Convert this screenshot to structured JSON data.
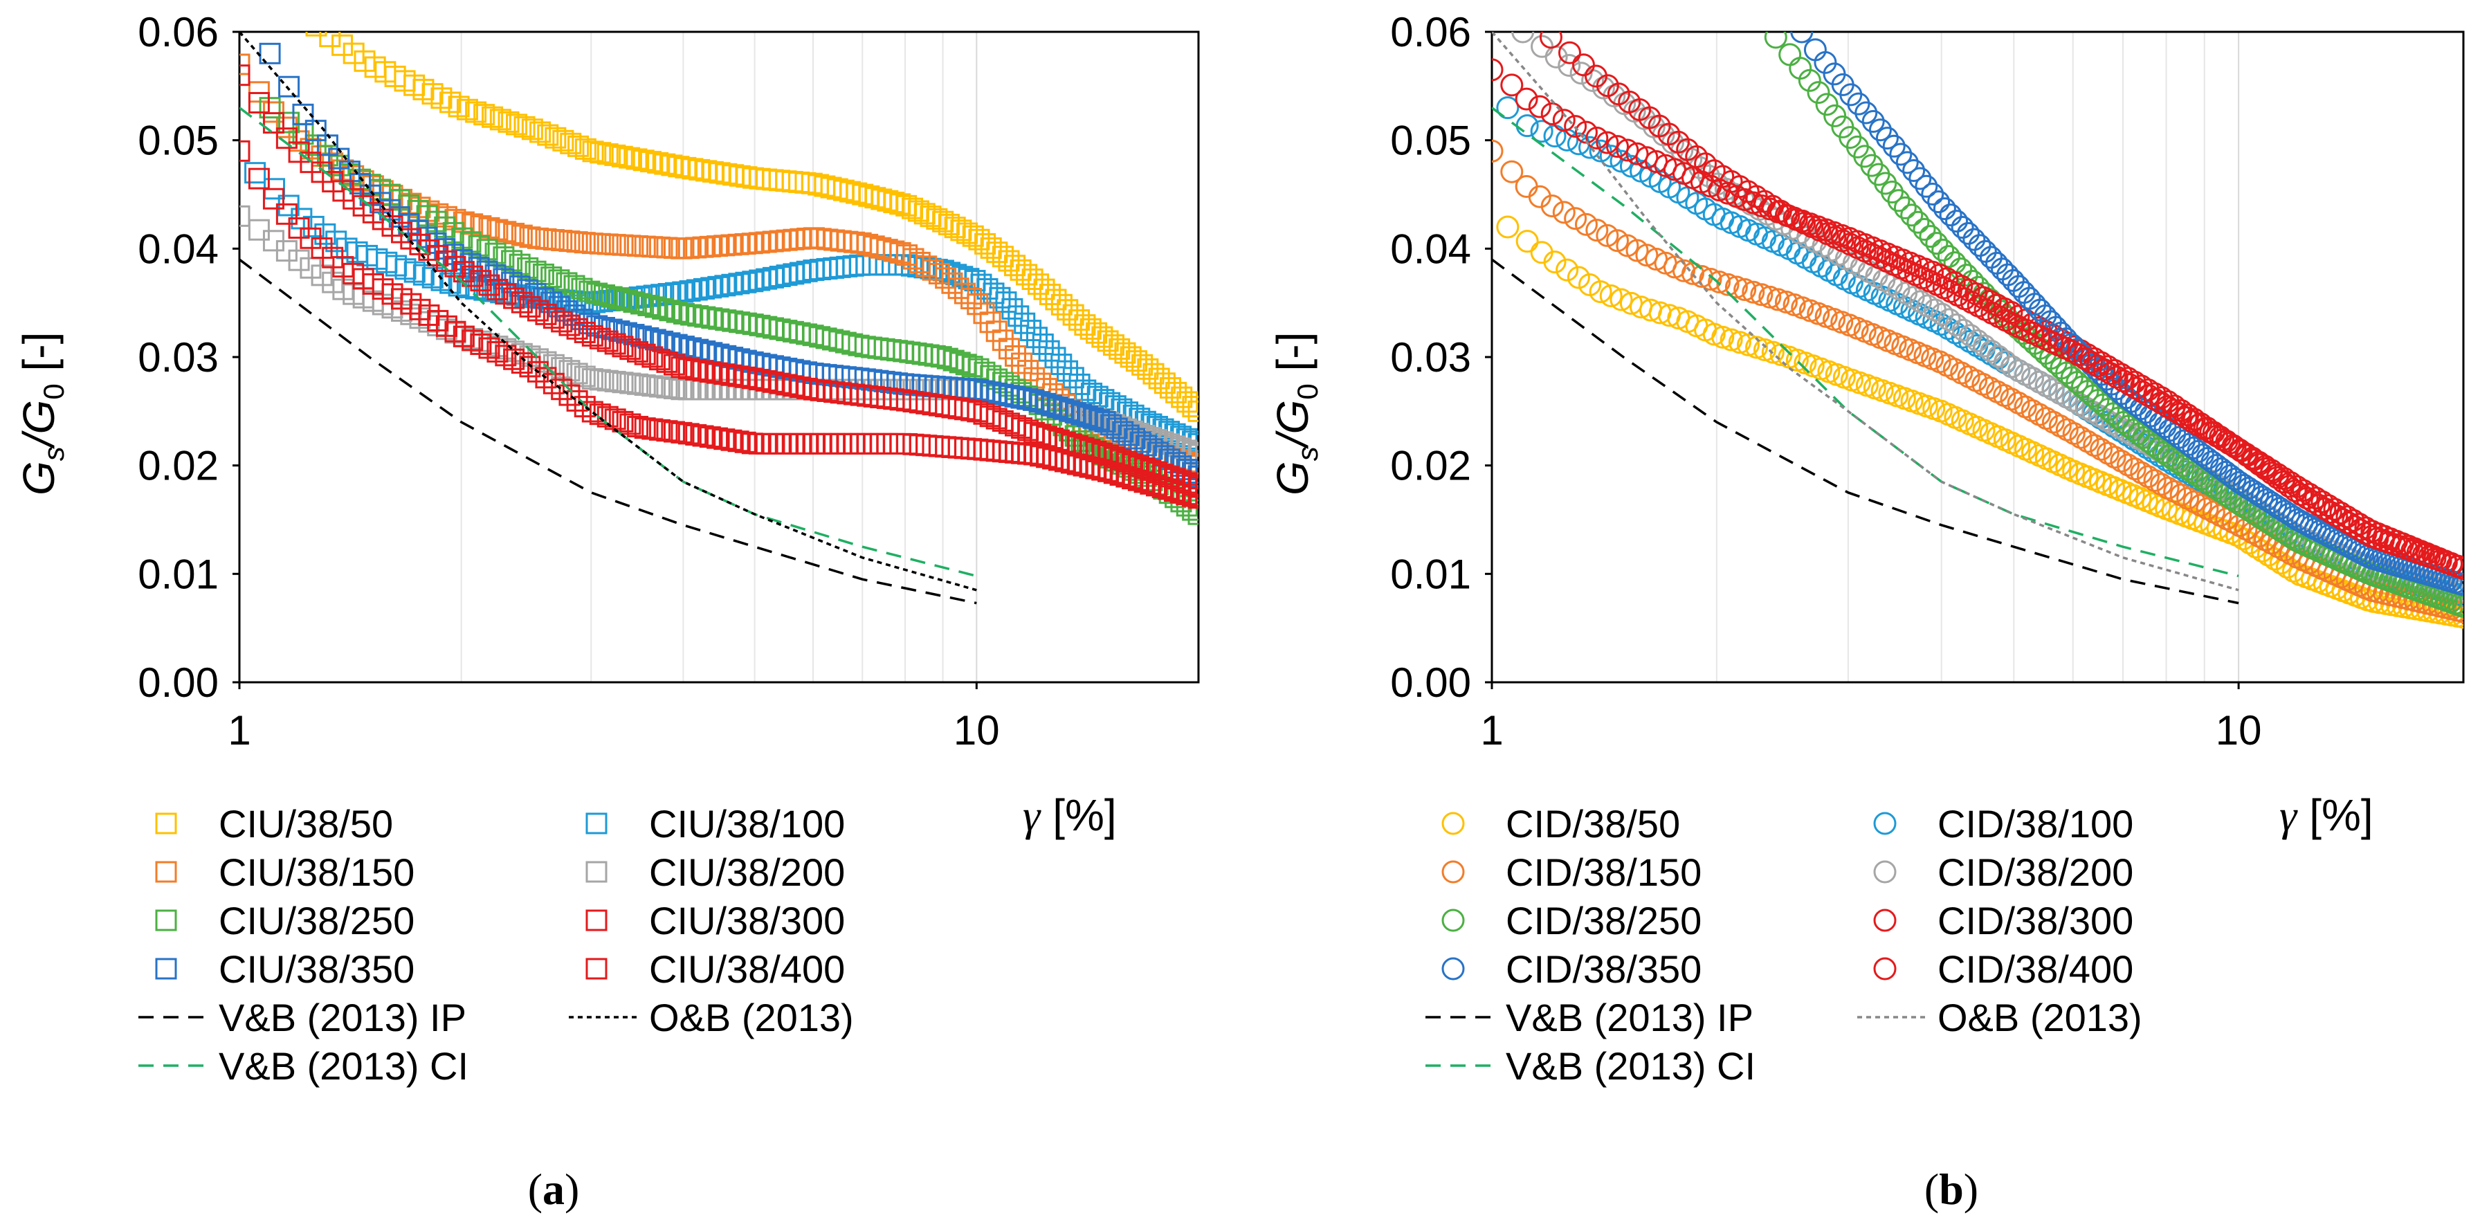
{
  "chart_data": [
    {
      "type": "scatter",
      "panel_label": "a",
      "xlabel_symbol": "γ",
      "xlabel_unit": "[%]",
      "ylabel_main": "G",
      "ylabel_sub1": "s",
      "ylabel_slash": "/G",
      "ylabel_sub2": "0",
      "ylabel_unit": " [-]",
      "xscale": "log",
      "xlim": [
        1,
        20
      ],
      "ylim": [
        0,
        0.06
      ],
      "xticks": [
        {
          "value": 1,
          "label": "1"
        },
        {
          "value": 10,
          "label": "10"
        }
      ],
      "yticks": [
        {
          "value": 0,
          "label": "0.00"
        },
        {
          "value": 0.01,
          "label": "0.01"
        },
        {
          "value": 0.02,
          "label": "0.02"
        },
        {
          "value": 0.03,
          "label": "0.03"
        },
        {
          "value": 0.04,
          "label": "0.04"
        },
        {
          "value": 0.05,
          "label": "0.05"
        },
        {
          "value": 0.06,
          "label": "0.06"
        }
      ],
      "grid": "vertical-minor",
      "marker": "square",
      "series": [
        {
          "name": "CIU/38/50",
          "color": "#FFC000",
          "x": [
            1.2,
            1.3,
            1.5,
            1.8,
            2.0,
            2.5,
            3.0,
            4.0,
            5.0,
            6.0,
            7.0,
            8.0,
            9.0,
            10.0,
            11.0,
            12.0,
            14.0,
            17.0,
            20.0
          ],
          "y": [
            0.062,
            0.06,
            0.057,
            0.0545,
            0.053,
            0.051,
            0.049,
            0.0475,
            0.0465,
            0.046,
            0.045,
            0.044,
            0.0425,
            0.041,
            0.039,
            0.037,
            0.033,
            0.029,
            0.025
          ]
        },
        {
          "name": "CIU/38/100",
          "color": "#1E9AD6",
          "x": [
            1.05,
            1.1,
            1.2,
            1.4,
            1.7,
            2.0,
            2.5,
            3.0,
            4.0,
            5.0,
            6.0,
            7.0,
            8.0,
            9.0,
            10.0,
            11.0,
            12.0,
            14.0,
            17.0,
            20.0
          ],
          "y": [
            0.047,
            0.046,
            0.043,
            0.04,
            0.038,
            0.0365,
            0.0355,
            0.035,
            0.036,
            0.037,
            0.038,
            0.0385,
            0.0385,
            0.038,
            0.037,
            0.035,
            0.032,
            0.027,
            0.024,
            0.022
          ]
        },
        {
          "name": "CIU/38/150",
          "color": "#F27D2A",
          "x": [
            1.0,
            1.05,
            1.1,
            1.2,
            1.4,
            1.6,
            1.8,
            2.0,
            2.5,
            3.0,
            4.0,
            5.0,
            6.0,
            7.0,
            8.0,
            9.0,
            10.0,
            11.0,
            12.0,
            13.0,
            14.0,
            16.0,
            20.0
          ],
          "y": [
            0.057,
            0.055,
            0.053,
            0.05,
            0.047,
            0.045,
            0.0435,
            0.0425,
            0.041,
            0.0405,
            0.04,
            0.0405,
            0.041,
            0.0405,
            0.0395,
            0.0375,
            0.035,
            0.031,
            0.028,
            0.026,
            0.024,
            0.022,
            0.02
          ]
        },
        {
          "name": "CIU/38/200",
          "color": "#A6A6A6",
          "x": [
            1.0,
            1.05,
            1.1,
            1.2,
            1.4,
            1.7,
            2.0,
            2.5,
            3.0,
            4.0,
            5.0,
            6.0,
            8.0,
            10.0,
            12.0,
            15.0,
            20.0
          ],
          "y": [
            0.043,
            0.042,
            0.041,
            0.039,
            0.036,
            0.034,
            0.032,
            0.03,
            0.028,
            0.027,
            0.027,
            0.027,
            0.027,
            0.027,
            0.026,
            0.024,
            0.021
          ]
        },
        {
          "name": "CIU/38/250",
          "color": "#4CB043",
          "x": [
            1.1,
            1.2,
            1.4,
            1.6,
            1.8,
            2.0,
            2.5,
            3.0,
            4.0,
            5.0,
            6.0,
            7.0,
            8.0,
            9.0,
            10.0,
            12.0,
            14.0,
            17.0,
            20.0
          ],
          "y": [
            0.053,
            0.051,
            0.047,
            0.045,
            0.043,
            0.041,
            0.038,
            0.036,
            0.034,
            0.033,
            0.032,
            0.031,
            0.0305,
            0.03,
            0.029,
            0.026,
            0.022,
            0.019,
            0.0155
          ]
        },
        {
          "name": "CIU/38/300",
          "color": "#E41A1C",
          "x": [
            1.0,
            1.05,
            1.1,
            1.2,
            1.4,
            1.7,
            2.0,
            2.5,
            3.0,
            3.5,
            4.0,
            5.0,
            6.0,
            8.0,
            10.0,
            12.0,
            15.0,
            20.0
          ],
          "y": [
            0.049,
            0.047,
            0.045,
            0.042,
            0.038,
            0.035,
            0.032,
            0.029,
            0.025,
            0.0235,
            0.023,
            0.022,
            0.022,
            0.022,
            0.0215,
            0.021,
            0.0195,
            0.017
          ]
        },
        {
          "name": "CIU/38/350",
          "color": "#2873C7",
          "x": [
            1.1,
            1.15,
            1.2,
            1.3,
            1.5,
            1.8,
            2.0,
            2.5,
            3.0,
            4.0,
            5.0,
            6.0,
            7.0,
            8.0,
            10.0,
            12.0,
            15.0,
            20.0
          ],
          "y": [
            0.058,
            0.056,
            0.053,
            0.05,
            0.045,
            0.041,
            0.039,
            0.036,
            0.033,
            0.031,
            0.0295,
            0.0285,
            0.028,
            0.0275,
            0.027,
            0.026,
            0.024,
            0.019
          ]
        },
        {
          "name": "CIU/38/400",
          "color": "#E41A1C",
          "x": [
            1.0,
            1.05,
            1.1,
            1.2,
            1.4,
            1.7,
            2.0,
            2.5,
            3.0,
            4.0,
            5.0,
            6.0,
            8.0,
            10.0,
            12.0,
            15.0,
            20.0
          ],
          "y": [
            0.056,
            0.054,
            0.052,
            0.049,
            0.045,
            0.041,
            0.038,
            0.0345,
            0.032,
            0.029,
            0.028,
            0.027,
            0.026,
            0.025,
            0.023,
            0.021,
            0.018
          ]
        }
      ],
      "lines": [
        {
          "name": "V&B (2013) IP",
          "color": "#000000",
          "dash": "long",
          "x": [
            1,
            1.5,
            2,
            3,
            4,
            5,
            7,
            10
          ],
          "y": [
            0.039,
            0.03,
            0.024,
            0.0175,
            0.0145,
            0.0125,
            0.0095,
            0.0073
          ]
        },
        {
          "name": "V&B (2013) CI",
          "color": "#1FAF63",
          "dash": "long",
          "x": [
            1,
            1.5,
            2,
            3,
            4,
            5,
            7,
            10
          ],
          "y": [
            0.053,
            0.044,
            0.037,
            0.025,
            0.0185,
            0.0155,
            0.0125,
            0.0098
          ]
        },
        {
          "name": "O&B (2013)",
          "color": "#000000",
          "dash": "short",
          "x": [
            1,
            1.3,
            1.6,
            2,
            2.5,
            3,
            4,
            5,
            7,
            10
          ],
          "y": [
            0.06,
            0.051,
            0.043,
            0.035,
            0.029,
            0.025,
            0.0185,
            0.0155,
            0.0115,
            0.0085
          ]
        }
      ],
      "legend": {
        "placement": "below",
        "columns": [
          [
            "CIU/38/50",
            "CIU/38/150",
            "CIU/38/250",
            "CIU/38/350",
            "V&B (2013) IP",
            "V&B (2013) CI"
          ],
          [
            "CIU/38/100",
            "CIU/38/200",
            "CIU/38/300",
            "CIU/38/400",
            "O&B (2013)"
          ]
        ]
      }
    },
    {
      "type": "scatter",
      "panel_label": "b",
      "xlabel_symbol": "γ",
      "xlabel_unit": "[%]",
      "ylabel_main": "G",
      "ylabel_sub1": "s",
      "ylabel_slash": "/G",
      "ylabel_sub2": "0",
      "ylabel_unit": " [-]",
      "xscale": "log",
      "xlim": [
        1,
        20
      ],
      "ylim": [
        0,
        0.06
      ],
      "xticks": [
        {
          "value": 1,
          "label": "1"
        },
        {
          "value": 10,
          "label": "10"
        }
      ],
      "yticks": [
        {
          "value": 0,
          "label": "0.00"
        },
        {
          "value": 0.01,
          "label": "0.01"
        },
        {
          "value": 0.02,
          "label": "0.02"
        },
        {
          "value": 0.03,
          "label": "0.03"
        },
        {
          "value": 0.04,
          "label": "0.04"
        },
        {
          "value": 0.05,
          "label": "0.05"
        },
        {
          "value": 0.06,
          "label": "0.06"
        }
      ],
      "grid": "vertical-minor",
      "marker": "circle",
      "series": [
        {
          "name": "CID/38/50",
          "color": "#FFC000",
          "x": [
            1.05,
            1.1,
            1.2,
            1.4,
            1.6,
            1.8,
            2.0,
            2.5,
            3.0,
            4.0,
            5.0,
            6.0,
            8.0,
            10.0,
            12.0,
            15.0,
            20.0
          ],
          "y": [
            0.042,
            0.041,
            0.039,
            0.036,
            0.0345,
            0.0335,
            0.032,
            0.03,
            0.028,
            0.025,
            0.022,
            0.0195,
            0.016,
            0.0135,
            0.01,
            0.0075,
            0.006
          ]
        },
        {
          "name": "CID/38/100",
          "color": "#1E9AD6",
          "x": [
            1.05,
            1.1,
            1.2,
            1.4,
            1.6,
            1.8,
            2.0,
            2.5,
            3.0,
            4.0,
            5.0,
            6.0,
            8.0,
            10.0,
            12.0,
            15.0,
            20.0
          ],
          "y": [
            0.053,
            0.0515,
            0.0505,
            0.049,
            0.047,
            0.045,
            0.043,
            0.04,
            0.037,
            0.033,
            0.029,
            0.026,
            0.0205,
            0.0165,
            0.013,
            0.01,
            0.008
          ]
        },
        {
          "name": "CID/38/150",
          "color": "#F27D2A",
          "x": [
            1.0,
            1.05,
            1.1,
            1.2,
            1.4,
            1.6,
            1.8,
            2.0,
            2.5,
            3.0,
            4.0,
            5.0,
            6.0,
            8.0,
            10.0,
            12.0,
            15.0,
            20.0
          ],
          "y": [
            0.049,
            0.0475,
            0.046,
            0.044,
            0.0415,
            0.0395,
            0.038,
            0.037,
            0.035,
            0.033,
            0.0295,
            0.026,
            0.023,
            0.018,
            0.0145,
            0.0115,
            0.0085,
            0.0065
          ]
        },
        {
          "name": "CID/38/200",
          "color": "#A6A6A6",
          "x": [
            1.1,
            1.15,
            1.2,
            1.4,
            1.6,
            1.8,
            2.0,
            2.5,
            3.0,
            4.0,
            5.0,
            6.0,
            8.0,
            10.0,
            12.0,
            15.0,
            20.0
          ],
          "y": [
            0.06,
            0.059,
            0.058,
            0.055,
            0.052,
            0.049,
            0.046,
            0.042,
            0.039,
            0.034,
            0.029,
            0.026,
            0.021,
            0.017,
            0.0135,
            0.0105,
            0.0085
          ]
        },
        {
          "name": "CID/38/250",
          "color": "#4CB043",
          "x": [
            2.4,
            2.5,
            2.7,
            3.0,
            3.5,
            4.0,
            5.0,
            6.0,
            7.0,
            8.0,
            10.0,
            12.0,
            15.0,
            20.0
          ],
          "y": [
            0.0595,
            0.058,
            0.055,
            0.0505,
            0.0445,
            0.04,
            0.033,
            0.028,
            0.024,
            0.021,
            0.0165,
            0.013,
            0.01,
            0.007
          ]
        },
        {
          "name": "CID/38/300",
          "color": "#E41A1C",
          "x": [
            1.0,
            1.05,
            1.1,
            1.2,
            1.4,
            1.6,
            1.8,
            2.0,
            2.5,
            3.0,
            4.0,
            5.0,
            6.0,
            8.0,
            10.0,
            12.0,
            15.0,
            20.0
          ],
          "y": [
            0.0565,
            0.0555,
            0.054,
            0.0525,
            0.05,
            0.0485,
            0.047,
            0.0455,
            0.043,
            0.041,
            0.0375,
            0.034,
            0.031,
            0.026,
            0.0215,
            0.018,
            0.014,
            0.0105
          ]
        },
        {
          "name": "CID/38/350",
          "color": "#2873C7",
          "x": [
            2.6,
            2.7,
            3.0,
            3.5,
            4.0,
            5.0,
            6.0,
            7.0,
            8.0,
            10.0,
            12.0,
            15.0,
            20.0
          ],
          "y": [
            0.06,
            0.0585,
            0.0545,
            0.049,
            0.044,
            0.037,
            0.031,
            0.0265,
            0.0235,
            0.0185,
            0.015,
            0.0115,
            0.009
          ]
        },
        {
          "name": "CID/38/400",
          "color": "#E41A1C",
          "x": [
            1.2,
            1.25,
            1.3,
            1.4,
            1.6,
            1.8,
            2.0,
            2.5,
            3.0,
            4.0,
            5.0,
            6.0,
            8.0,
            10.0,
            12.0,
            15.0,
            20.0
          ],
          "y": [
            0.0595,
            0.0585,
            0.0575,
            0.0555,
            0.0525,
            0.0495,
            0.047,
            0.043,
            0.0405,
            0.0365,
            0.033,
            0.0305,
            0.0255,
            0.0215,
            0.0175,
            0.0135,
            0.0105
          ]
        }
      ],
      "lines": [
        {
          "name": "V&B (2013) IP",
          "color": "#000000",
          "dash": "long",
          "x": [
            1,
            1.5,
            2,
            3,
            4,
            5,
            7,
            10
          ],
          "y": [
            0.039,
            0.03,
            0.024,
            0.0175,
            0.0145,
            0.0125,
            0.0095,
            0.0073
          ]
        },
        {
          "name": "V&B (2013) CI",
          "color": "#1FAF63",
          "dash": "long",
          "x": [
            1,
            1.5,
            2,
            3,
            4,
            5,
            7,
            10
          ],
          "y": [
            0.053,
            0.044,
            0.037,
            0.025,
            0.0185,
            0.0155,
            0.0125,
            0.0098
          ]
        },
        {
          "name": "O&B (2013)",
          "color": "#888888",
          "dash": "short",
          "x": [
            1,
            1.3,
            1.6,
            2,
            2.5,
            3,
            4,
            5,
            7,
            10
          ],
          "y": [
            0.06,
            0.051,
            0.043,
            0.035,
            0.029,
            0.025,
            0.0185,
            0.0155,
            0.0115,
            0.0085
          ]
        }
      ],
      "legend": {
        "placement": "below",
        "columns": [
          [
            "CID/38/50",
            "CID/38/150",
            "CID/38/250",
            "CID/38/350",
            "V&B (2013) IP",
            "V&B (2013) CI"
          ],
          [
            "CID/38/100",
            "CID/38/200",
            "CID/38/300",
            "CID/38/400",
            "O&B (2013)"
          ]
        ]
      }
    }
  ]
}
